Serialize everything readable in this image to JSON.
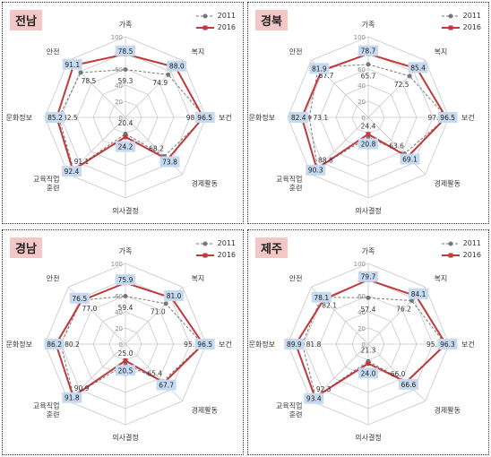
{
  "axes": [
    "가족",
    "복지",
    "보건",
    "경제활동",
    "의사결정",
    "교육직업\n훈련",
    "문화정보",
    "안전"
  ],
  "ticks": [
    0,
    20,
    40,
    60,
    80,
    100
  ],
  "legend": [
    "2011",
    "2016"
  ],
  "colors": {
    "s2011": "#777777",
    "s2016": "#c0393b",
    "label_box": "#c5d9f1",
    "badge": "#f4c7c7"
  },
  "chart_data": [
    {
      "type": "radar",
      "title": "전남",
      "categories": [
        "가족",
        "복지",
        "보건",
        "경제활동",
        "의사결정",
        "교육직업 훈련",
        "문화정보",
        "안전"
      ],
      "ylim": [
        0,
        100
      ],
      "series": [
        {
          "name": "2011",
          "values": [
            59.3,
            74.9,
            98.5,
            68.2,
            20.4,
            91.1,
            82.5,
            78.5
          ]
        },
        {
          "name": "2016",
          "values": [
            78.5,
            88.0,
            96.5,
            73.8,
            24.2,
            92.4,
            85.2,
            91.1
          ]
        }
      ]
    },
    {
      "type": "radar",
      "title": "경북",
      "categories": [
        "가족",
        "복지",
        "보건",
        "경제활동",
        "의사결정",
        "교육직업 훈련",
        "문화정보",
        "안전"
      ],
      "ylim": [
        0,
        100
      ],
      "series": [
        {
          "name": "2011",
          "values": [
            65.7,
            72.5,
            97.2,
            63.6,
            24.4,
            88.8,
            73.1,
            87.7
          ]
        },
        {
          "name": "2016",
          "values": [
            78.7,
            85.4,
            96.5,
            69.1,
            20.8,
            90.3,
            82.4,
            81.9
          ]
        }
      ]
    },
    {
      "type": "radar",
      "title": "경남",
      "categories": [
        "가족",
        "복지",
        "보건",
        "경제활동",
        "의사결정",
        "교육직업 훈련",
        "문화정보",
        "안전"
      ],
      "ylim": [
        0,
        100
      ],
      "series": [
        {
          "name": "2011",
          "values": [
            59.4,
            71.0,
            95.7,
            65.4,
            25.0,
            90.9,
            80.2,
            77.0
          ]
        },
        {
          "name": "2016",
          "values": [
            75.9,
            81.0,
            96.5,
            67.7,
            20.5,
            91.8,
            86.2,
            76.5
          ]
        }
      ]
    },
    {
      "type": "radar",
      "title": "제주",
      "categories": [
        "가족",
        "복지",
        "보건",
        "경제활동",
        "의사결정",
        "교육직업 훈련",
        "문화정보",
        "안전"
      ],
      "ylim": [
        0,
        100
      ],
      "series": [
        {
          "name": "2011",
          "values": [
            57.4,
            76.2,
            95.5,
            66.0,
            21.3,
            92.3,
            81.8,
            82.1
          ]
        },
        {
          "name": "2016",
          "values": [
            79.7,
            84.1,
            96.3,
            66.6,
            24.0,
            93.4,
            89.9,
            78.1
          ]
        }
      ]
    }
  ]
}
